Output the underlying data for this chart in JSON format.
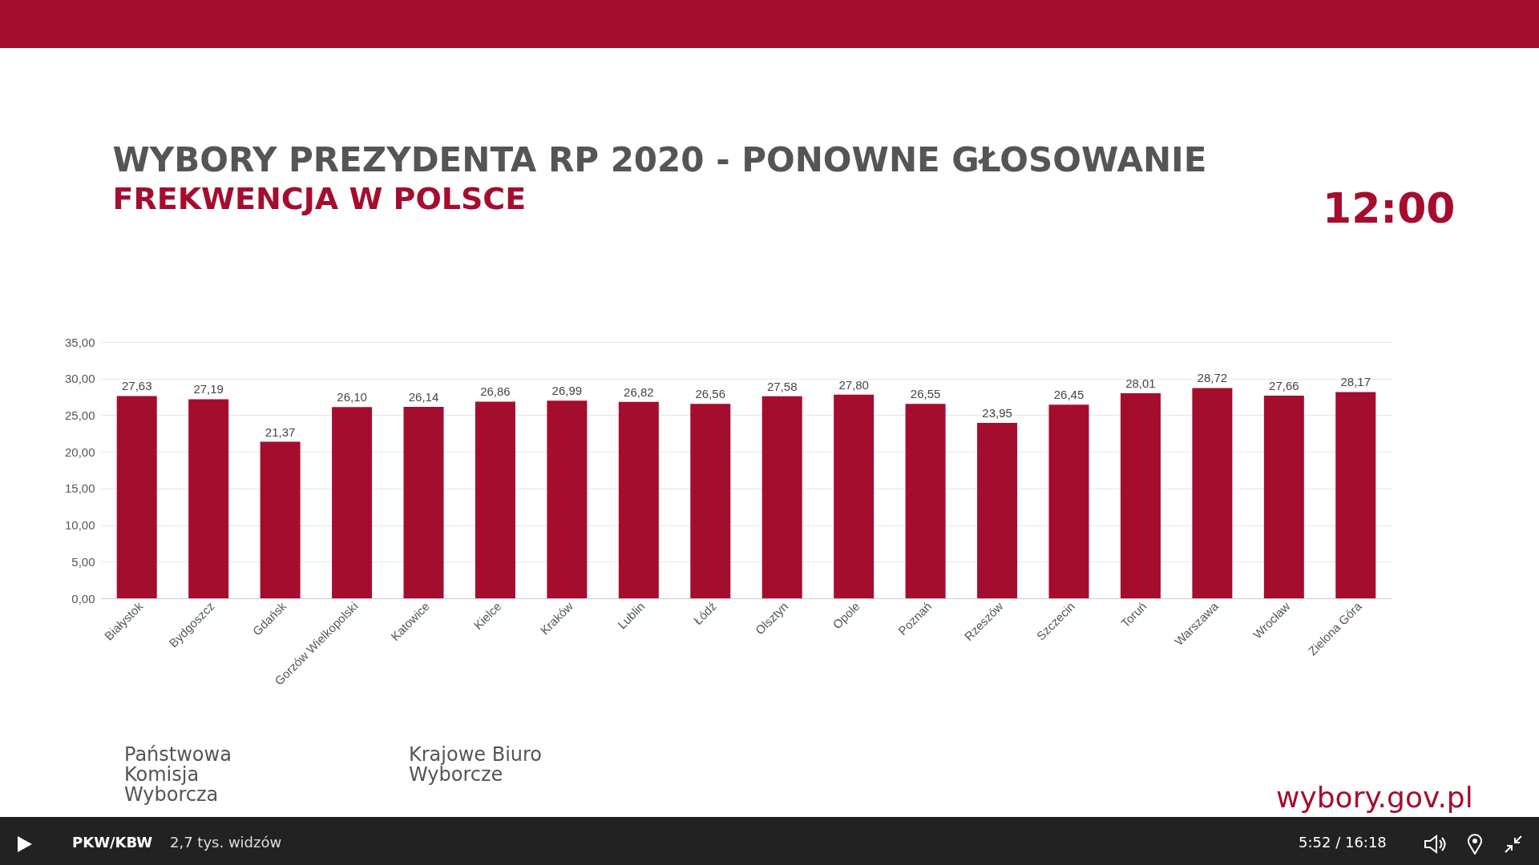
{
  "chart_data": {
    "type": "bar",
    "title": "WYBORY PREZYDENTA RP 2020 - PONOWNE GŁOSOWANIE",
    "subtitle": "FREKWENCJA W POLSCE",
    "categories": [
      "Białystok",
      "Bydgoszcz",
      "Gdańsk",
      "Gorzów Wielkopolski",
      "Katowice",
      "Kielce",
      "Kraków",
      "Lublin",
      "Łódź",
      "Olsztyn",
      "Opole",
      "Poznań",
      "Rzeszów",
      "Szczecin",
      "Toruń",
      "Warszawa",
      "Wrocław",
      "Zielona Góra"
    ],
    "values": [
      27.63,
      27.19,
      21.37,
      26.1,
      26.14,
      26.86,
      26.99,
      26.82,
      26.56,
      27.58,
      27.8,
      26.55,
      23.95,
      26.45,
      28.01,
      28.72,
      27.66,
      28.17
    ],
    "value_labels": [
      "27,63",
      "27,19",
      "21,37",
      "26,10",
      "26,14",
      "26,86",
      "26,99",
      "26,82",
      "26,56",
      "27,58",
      "27,80",
      "26,55",
      "23,95",
      "26,45",
      "28,01",
      "28,72",
      "27,66",
      "28,17"
    ],
    "color": "#a50d2f",
    "ylim": [
      0,
      35
    ],
    "yticks": [
      {
        "value": 0,
        "label": "0,00"
      },
      {
        "value": 5,
        "label": "5,00"
      },
      {
        "value": 10,
        "label": "10,00"
      },
      {
        "value": 15,
        "label": "15,00"
      },
      {
        "value": 20,
        "label": "20,00"
      },
      {
        "value": 25,
        "label": "25,00"
      },
      {
        "value": 30,
        "label": "30,00"
      },
      {
        "value": 35,
        "label": "35,00"
      }
    ],
    "grid": "y",
    "annotations": [
      "12:00",
      "Państwowa Komisja Wyborcza",
      "Krajowe Biuro Wyborcze",
      "wybory.gov.pl",
      "PKW/KBW",
      "2,7 tys. widzów",
      "5:52 / 16:18"
    ]
  }
}
